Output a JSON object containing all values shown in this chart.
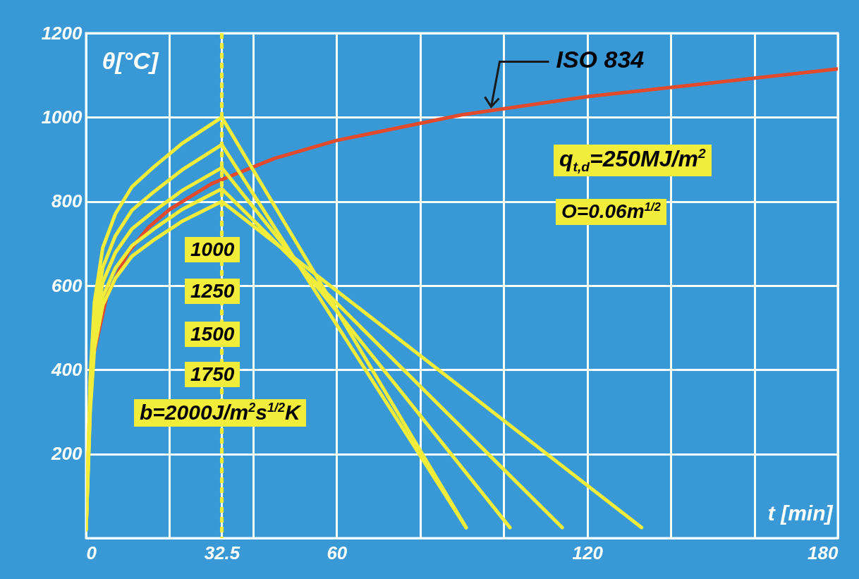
{
  "chart_data": {
    "type": "line",
    "xlabel": "t [min]",
    "ylabel": "θ[°C]",
    "xlim": [
      0,
      180
    ],
    "ylim": [
      0,
      1200
    ],
    "xticks": [
      0,
      {
        "value": 20,
        "label": null
      },
      32.5,
      {
        "value": 40,
        "label": null
      },
      60,
      {
        "value": 80,
        "label": null
      },
      {
        "value": 100,
        "label": null
      },
      120,
      {
        "value": 140,
        "label": null
      },
      {
        "value": 160,
        "label": null
      },
      180
    ],
    "yticks": [
      200,
      400,
      600,
      800,
      1000,
      1200
    ],
    "grid": true,
    "line_style": "solid",
    "marker": "none",
    "series": [
      {
        "color": "#e34a2c",
        "x": [
          2,
          5,
          10,
          15,
          20,
          30,
          45,
          60,
          90,
          120,
          150,
          180
        ],
        "values": [
          445,
          576,
          678,
          739,
          781,
          842,
          902,
          945,
          1006,
          1049,
          1082,
          1115
        ]
      },
      {
        "color": "#f2ec3a",
        "x": [
          0,
          1,
          2,
          4,
          7,
          11,
          16,
          23,
          32.5,
          91
        ],
        "values": [
          20,
          380,
          560,
          690,
          770,
          835,
          880,
          938,
          1000,
          25
        ]
      },
      {
        "color": "#f2ec3a",
        "x": [
          0,
          1,
          2,
          4,
          7,
          11,
          16,
          23,
          32.5,
          91
        ],
        "values": [
          20,
          356,
          524,
          643,
          718,
          779,
          821,
          875,
          935,
          25
        ]
      },
      {
        "color": "#f2ec3a",
        "x": [
          0,
          1,
          2,
          4,
          7,
          11,
          16,
          23,
          32.5,
          101.5
        ],
        "values": [
          20,
          334,
          494,
          608,
          678,
          735,
          775,
          826,
          880,
          25
        ]
      },
      {
        "color": "#f2ec3a",
        "x": [
          0,
          1,
          2,
          4,
          7,
          11,
          16,
          23,
          32.5,
          114
        ],
        "values": [
          20,
          315,
          466,
          574,
          641,
          695,
          733,
          781,
          830,
          25
        ]
      },
      {
        "color": "#f2ec3a",
        "x": [
          0,
          1,
          2,
          4,
          7,
          11,
          16,
          23,
          32.5,
          133
        ],
        "values": [
          20,
          303,
          450,
          553,
          617,
          670,
          707,
          753,
          800,
          25
        ]
      }
    ],
    "ref_lines": [
      {
        "axis": "x",
        "value": 32.5,
        "color": "#f2ec3a",
        "line_style": "dashed"
      }
    ],
    "annotations": [
      {
        "text": "ISO 834",
        "x": 97,
        "y": 1025
      },
      "1000",
      "1250",
      "1500",
      "1750",
      "b=2000J/m$^{2}$s$^{1/2}$K",
      "q$_{t,d}$=250MJ/m$^{2}$",
      "O=0.06m$^{1/2}$"
    ]
  }
}
